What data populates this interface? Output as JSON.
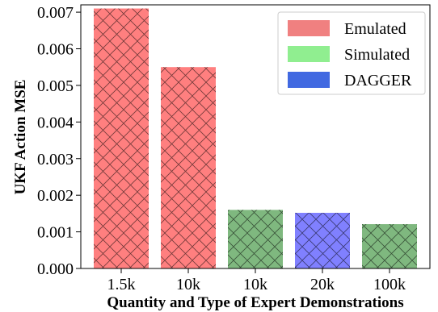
{
  "chart_data": {
    "type": "bar",
    "title": "",
    "xlabel": "Quantity and Type of Expert Demonstrations",
    "ylabel": "UKF Action MSE",
    "categories": [
      "1.5k",
      "10k",
      "10k",
      "20k",
      "100k"
    ],
    "values": [
      0.0071,
      0.0055,
      0.0016,
      0.00152,
      0.00121
    ],
    "bar_types": [
      "Emulated",
      "Emulated",
      "Simulated",
      "DAGGER",
      "Simulated"
    ],
    "ylim": [
      0,
      0.0072
    ],
    "yticks": [
      "0.000",
      "0.001",
      "0.002",
      "0.003",
      "0.004",
      "0.005",
      "0.006",
      "0.007"
    ],
    "hatch": "crosshatch",
    "grid": false,
    "legend": {
      "position": "top-right",
      "entries": [
        {
          "name": "Emulated",
          "color": "#f08080"
        },
        {
          "name": "Simulated",
          "color": "#90ee90"
        },
        {
          "name": "DAGGER",
          "color": "#4169e1"
        }
      ]
    },
    "colors": {
      "Emulated": "#ff7f7f",
      "Simulated": "#7fb87f",
      "DAGGER": "#8080ff"
    }
  }
}
